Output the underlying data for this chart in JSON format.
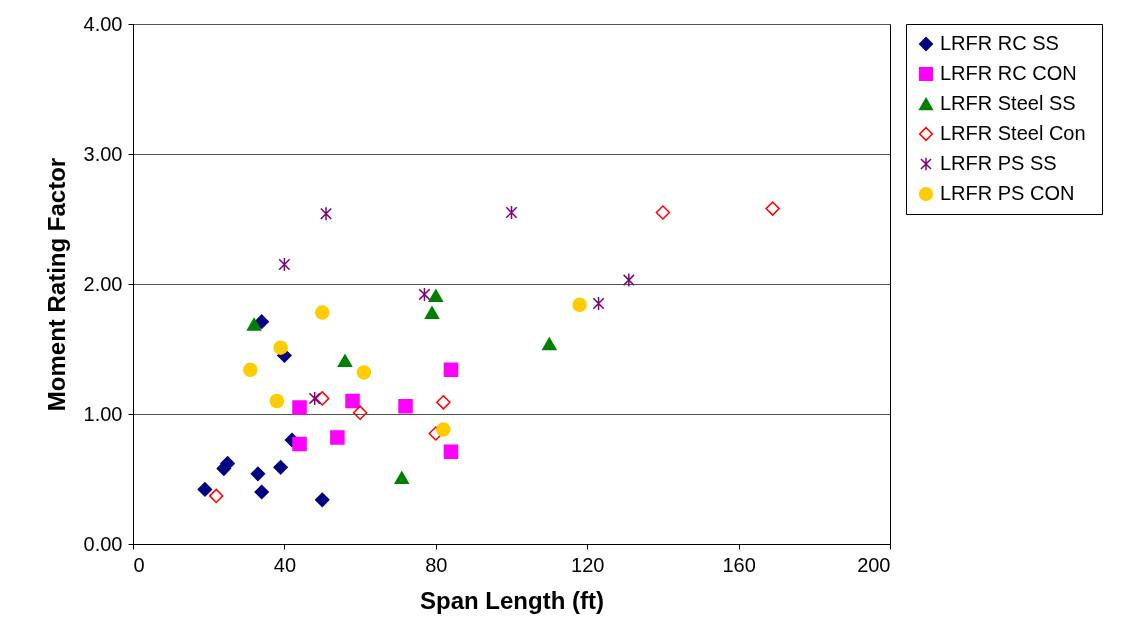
{
  "chart_data": {
    "type": "scatter",
    "xlabel": "Span Length (ft)",
    "ylabel": "Moment Rating Factor",
    "xlim": [
      0,
      200
    ],
    "xticks": [
      0,
      40,
      80,
      120,
      160,
      200
    ],
    "ylim": [
      0,
      4
    ],
    "yticks": [
      {
        "value": 0,
        "label": "0.00"
      },
      {
        "value": 1,
        "label": "1.00"
      },
      {
        "value": 2,
        "label": "2.00"
      },
      {
        "value": 3,
        "label": "3.00"
      },
      {
        "value": 4,
        "label": "4.00"
      }
    ],
    "grid": "y",
    "legend": "right",
    "series": [
      {
        "name": "LRFR  RC SS",
        "color": "#000080",
        "marker": "diamond",
        "x": [
          19,
          24,
          25,
          33,
          34,
          34,
          39,
          40,
          42,
          50
        ],
        "values": [
          0.42,
          0.58,
          0.62,
          0.54,
          0.4,
          1.71,
          0.59,
          1.45,
          0.8,
          0.34
        ]
      },
      {
        "name": "LRFR  RC CON",
        "color": "#ff00ff",
        "marker": "square",
        "x": [
          44,
          44,
          54,
          58,
          72,
          84,
          84
        ],
        "values": [
          1.05,
          0.77,
          0.82,
          1.1,
          1.06,
          1.34,
          0.71
        ]
      },
      {
        "name": "LRFR  Steel SS",
        "color": "#008000",
        "marker": "triangle",
        "x": [
          32,
          56,
          71,
          80,
          79,
          110
        ],
        "values": [
          1.69,
          1.41,
          0.51,
          1.91,
          1.78,
          1.54
        ]
      },
      {
        "name": "LRFR  Steel Con",
        "color": "#ff0000",
        "marker": "diamond",
        "x": [
          22,
          50,
          60,
          82,
          80,
          140,
          169
        ],
        "values": [
          0.37,
          1.12,
          1.01,
          1.09,
          0.85,
          2.55,
          2.58
        ]
      },
      {
        "name": "LRFR  PS SS",
        "color": "#800080",
        "marker": "cross",
        "x": [
          40,
          51,
          48,
          77,
          100,
          123,
          131
        ],
        "values": [
          2.15,
          2.54,
          1.12,
          1.92,
          2.55,
          1.85,
          2.03
        ]
      },
      {
        "name": "LRFR PS CON",
        "color": "#ffcc00",
        "marker": "circle",
        "x": [
          31,
          38,
          39,
          50,
          61,
          82,
          118
        ],
        "values": [
          1.34,
          1.1,
          1.51,
          1.78,
          1.32,
          0.88,
          1.84
        ]
      }
    ]
  }
}
